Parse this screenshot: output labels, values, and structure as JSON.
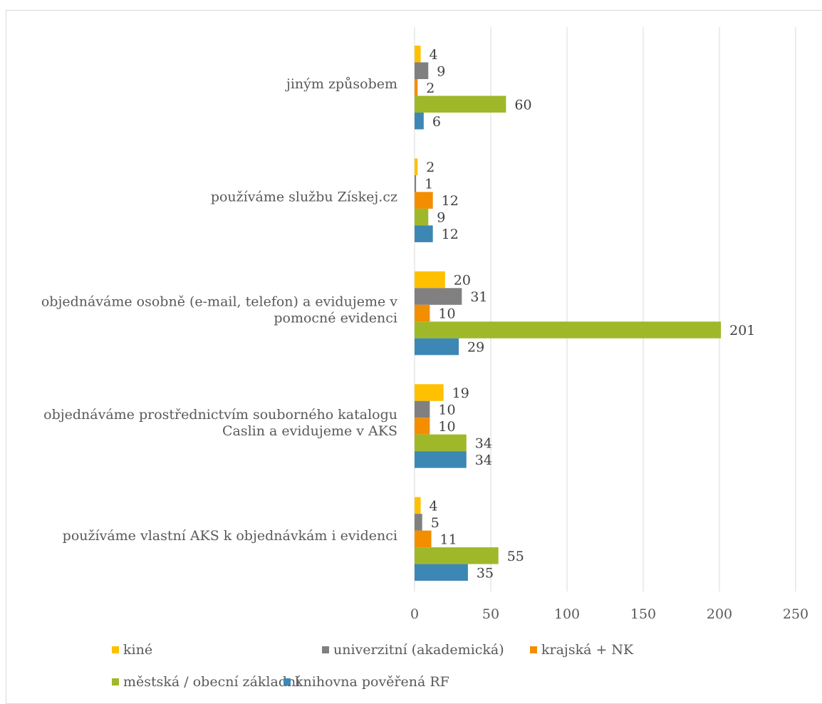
{
  "chart_data": {
    "type": "bar",
    "orientation": "horizontal",
    "categories": [
      "jiným způsobem",
      "používáme službu Získej.cz",
      "objednáváme osobně (e-mail, telefon) a evidujeme v pomocné evidenci",
      "objednáváme prostřednictvím souborného katalogu Caslin a evidujeme v AKS",
      "používáme vlastní AKS k objednávkám i evidenci"
    ],
    "series": [
      {
        "name": "kiné",
        "color": "#FFC000",
        "values": [
          4,
          2,
          20,
          19,
          4
        ]
      },
      {
        "name": "univerzitní (akademická)",
        "color": "#808080",
        "values": [
          9,
          1,
          31,
          10,
          5
        ]
      },
      {
        "name": "krajská + NK",
        "color": "#F28E00",
        "values": [
          2,
          12,
          10,
          10,
          11
        ]
      },
      {
        "name": "městská / obecní základní",
        "color": "#9FB82A",
        "values": [
          60,
          9,
          201,
          34,
          55
        ]
      },
      {
        "name": "knihovna pověřená RF",
        "color": "#3C87B4",
        "values": [
          6,
          12,
          29,
          34,
          35
        ]
      }
    ],
    "xlim": [
      0,
      250
    ],
    "xticks": [
      "0",
      "50",
      "100",
      "150",
      "200",
      "250"
    ],
    "grid": true,
    "legend_position": "bottom",
    "title": "",
    "xlabel": "",
    "ylabel": ""
  }
}
